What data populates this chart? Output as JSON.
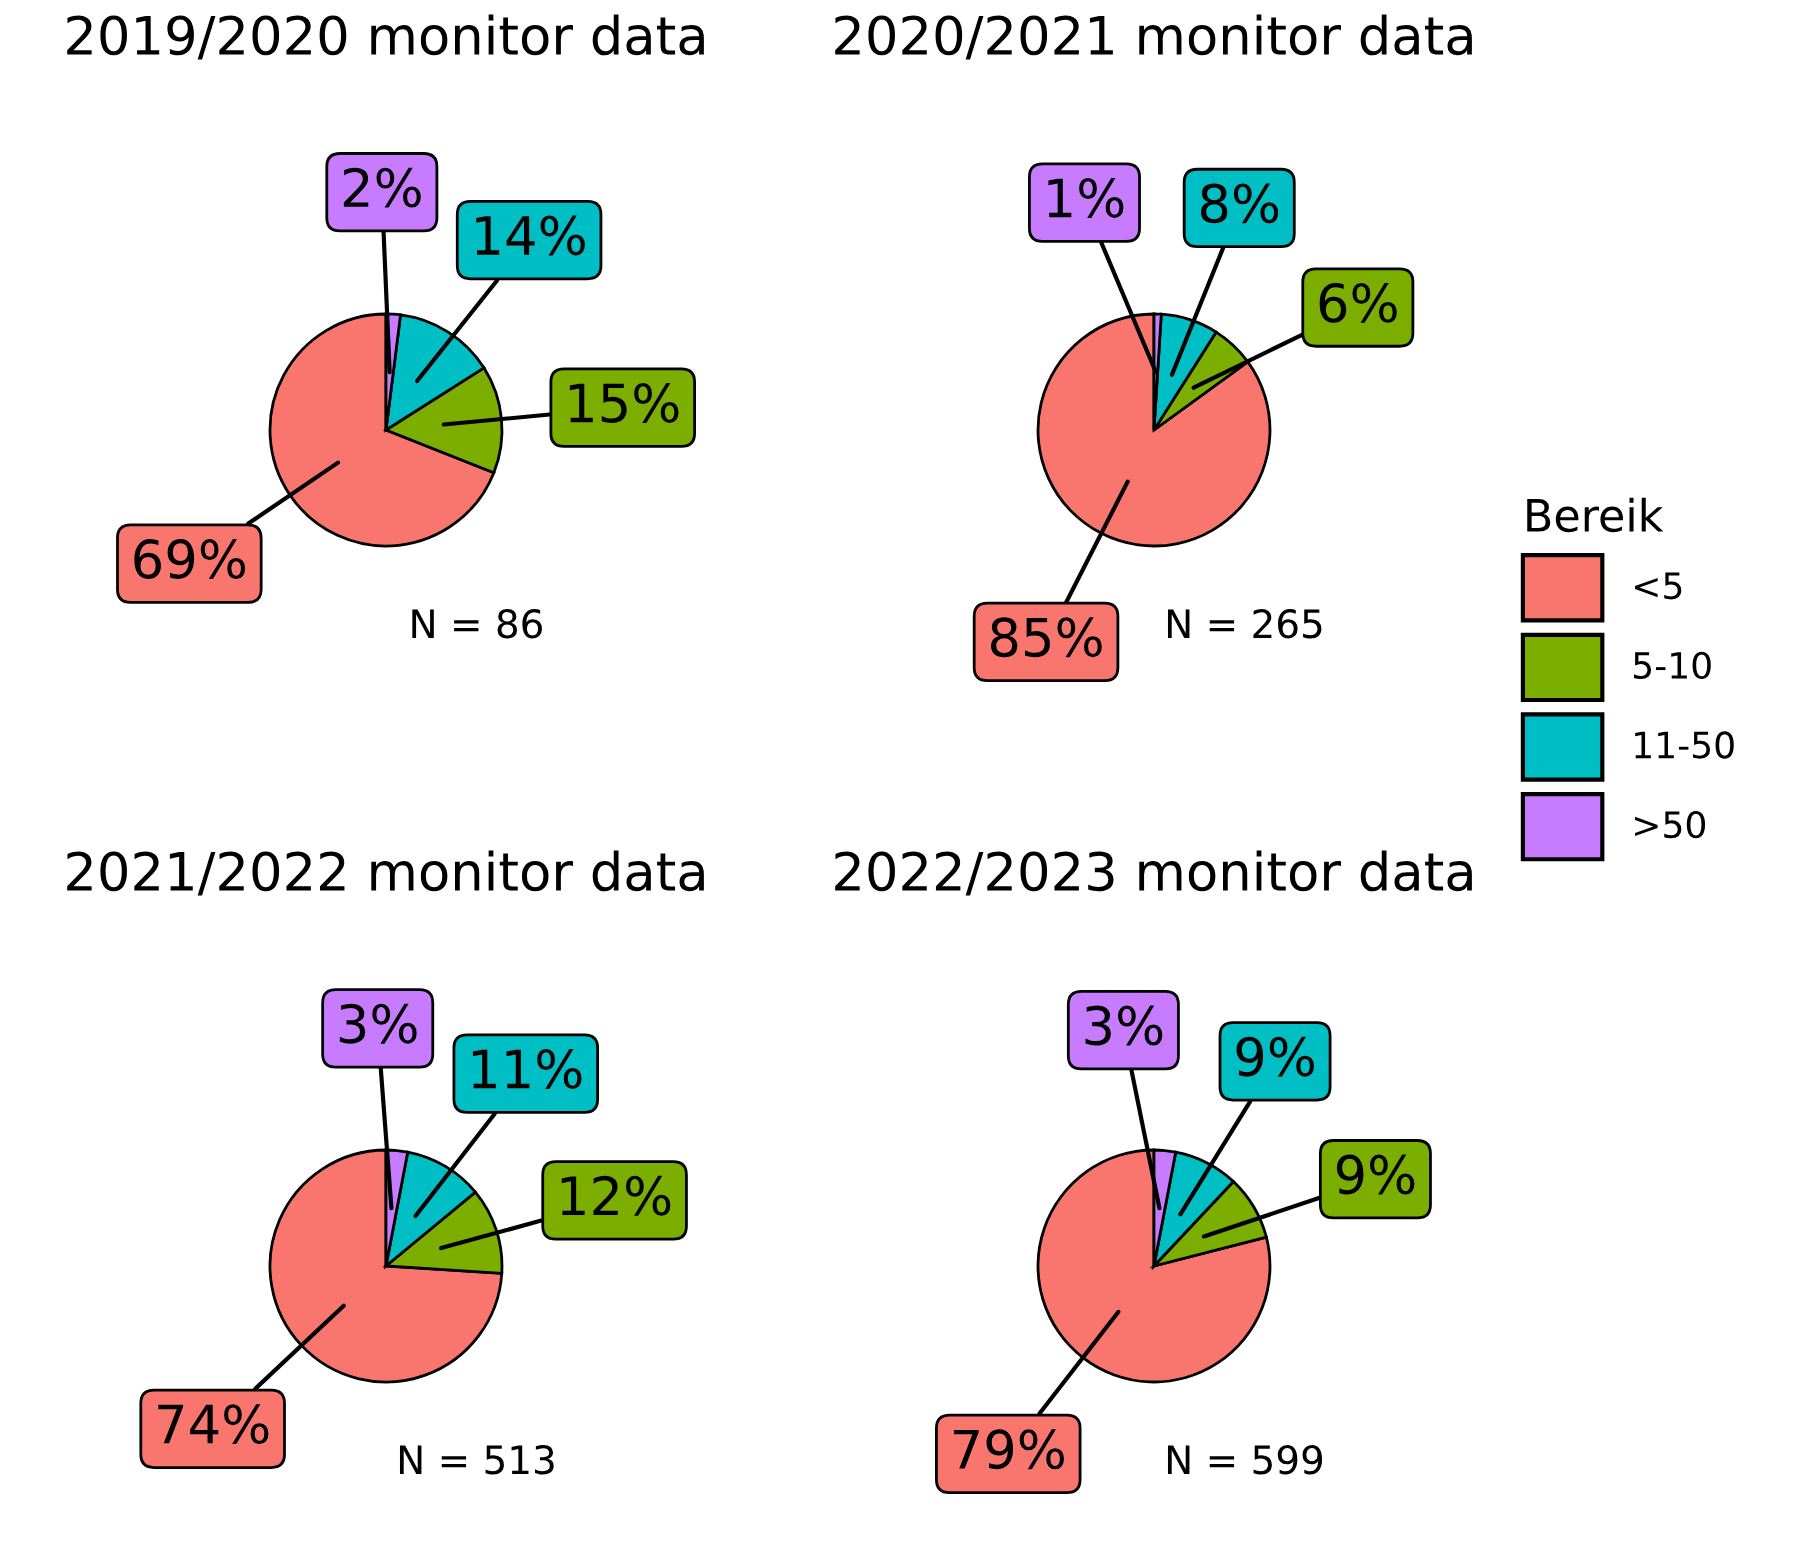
{
  "chart_data": [
    {
      "type": "pie",
      "title": "2019/2020 monitor data",
      "categories": [
        "<5",
        "5-10",
        "11-50",
        ">50"
      ],
      "values": [
        69,
        15,
        14,
        2
      ],
      "colors": [
        "#f8766d",
        "#7cae00",
        "#00bfc4",
        "#c77cff"
      ],
      "value_labels": [
        "69%",
        "15%",
        "14%",
        "2%"
      ],
      "annotations": [
        "N = 86"
      ],
      "legend": "right",
      "legend_title": "Bereik"
    },
    {
      "type": "pie",
      "title": "2020/2021 monitor data",
      "values": [
        85,
        6,
        8,
        1
      ],
      "colors": [
        "#f8766d",
        "#7cae00",
        "#00bfc4",
        "#c77cff"
      ],
      "value_labels": [
        "85%",
        "6%",
        "8%",
        "1%"
      ],
      "annotations": [
        "N = 265"
      ]
    },
    {
      "type": "pie",
      "title": "2021/2022 monitor data",
      "values": [
        74,
        12,
        11,
        3
      ],
      "colors": [
        "#f8766d",
        "#7cae00",
        "#00bfc4",
        "#c77cff"
      ],
      "value_labels": [
        "74%",
        "12%",
        "11%",
        "3%"
      ],
      "annotations": [
        "N = 513"
      ]
    },
    {
      "type": "pie",
      "title": "2022/2023 monitor data",
      "values": [
        79,
        9,
        9,
        3
      ],
      "colors": [
        "#f8766d",
        "#7cae00",
        "#00bfc4",
        "#c77cff"
      ],
      "value_labels": [
        "79%",
        "9%",
        "9%",
        "3%"
      ],
      "annotations": [
        "N = 599"
      ]
    }
  ]
}
